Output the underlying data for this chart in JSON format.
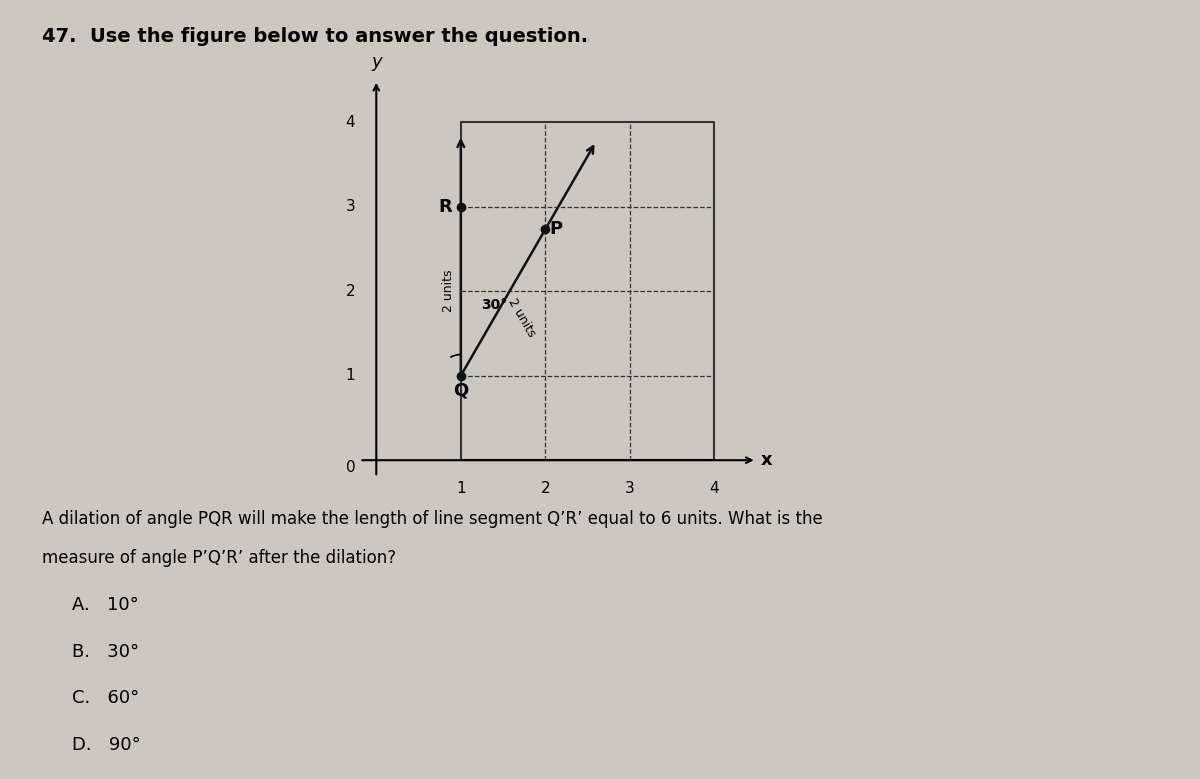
{
  "title": "47.  Use the figure below to answer the question.",
  "Q": [
    1,
    1
  ],
  "R": [
    1,
    3
  ],
  "P": [
    2,
    2.732
  ],
  "angle_label": "30°",
  "qr_label": "2 units",
  "qp_label": "2 units",
  "bg_color": "#ccc8bf",
  "grid_color": "#333333",
  "point_color": "#111111",
  "line_color": "#111111",
  "question_text": "A dilation of angle PQR will make the length of line segment Q’R’ equal to 6 units. What is the",
  "question_text2": "measure of angle P’Q’R’ after the dilation?",
  "choices": [
    "A.   10°",
    "B.   30°",
    "C.   60°",
    "D.   90°"
  ]
}
